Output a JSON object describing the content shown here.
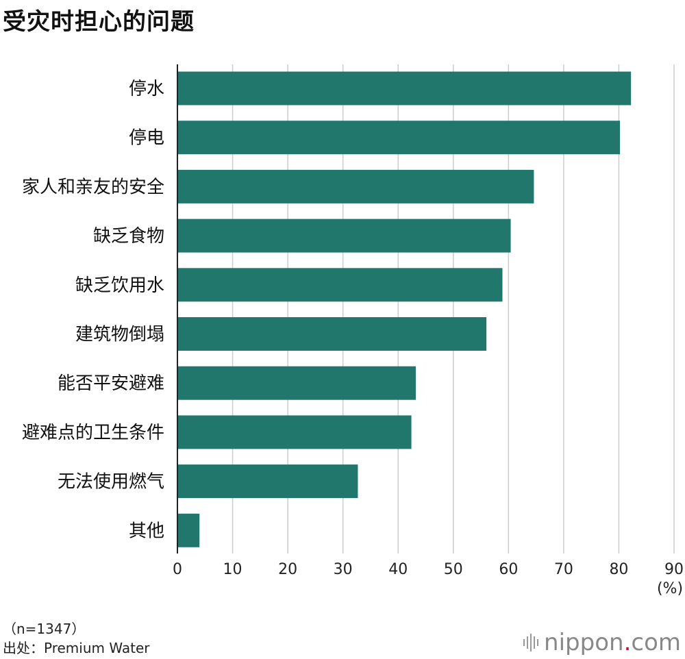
{
  "title": "受灾时担心的问题",
  "footnote_sample": "（n=1347）",
  "footnote_source": "出处：Premium Water",
  "logo": {
    "name": "nippon",
    "dot": ".",
    "suffix": "com",
    "icon": "sound-bars-icon"
  },
  "colors": {
    "bar": "#21776b",
    "grid": "#cccccc",
    "axis": "#222222",
    "logo_dot": "#c8102e"
  },
  "chart_data": {
    "type": "bar",
    "orientation": "horizontal",
    "categories": [
      "停水",
      "停电",
      "家人和亲友的安全",
      "缺乏食物",
      "缺乏饮用水",
      "建筑物倒塌",
      "能否平安避难",
      "避难点的卫生条件",
      "无法使用燃气",
      "其他"
    ],
    "values": [
      82.2,
      80.2,
      64.6,
      60.4,
      58.9,
      56.0,
      43.2,
      42.4,
      32.7,
      4.0
    ],
    "xlim": [
      0,
      90
    ],
    "xticks": [
      "0",
      "10",
      "20",
      "30",
      "40",
      "50",
      "60",
      "70",
      "80",
      "90"
    ],
    "unit_label": "(%)",
    "grid": true
  }
}
